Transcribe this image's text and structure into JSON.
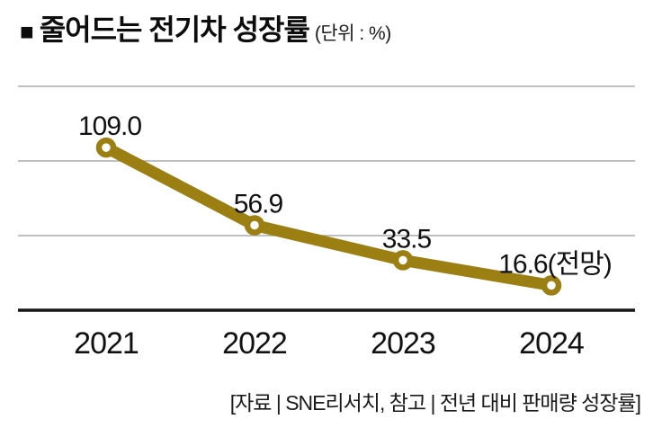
{
  "header": {
    "bullet": "■",
    "title": "줄어드는 전기차 성장률",
    "unit_label": "(단위 : %)"
  },
  "chart_data": {
    "type": "line",
    "title": "줄어드는 전기차 성장률",
    "unit": "%",
    "categories": [
      "2021",
      "2022",
      "2023",
      "2024"
    ],
    "values": [
      109.0,
      56.9,
      33.5,
      16.6
    ],
    "value_labels": [
      "109.0",
      "56.9",
      "33.5",
      "16.6(전망)"
    ],
    "series_note": "16.6 is a forecast (전망) for 2024",
    "ylim": [
      0,
      160
    ],
    "gridline_values": [
      50,
      100,
      150
    ],
    "grid": true,
    "legend": false,
    "xlabel": "",
    "ylabel": "전년 대비 판매량 성장률 (%)",
    "line_color": "#9c7f12",
    "marker_style": "ring-white-center",
    "gridline_color": "#ababab",
    "axis_color": "#141414",
    "text_color": "#111111"
  },
  "footer": {
    "source": "[자료 | SNE리서치, 참고 | 전년 대비 판매량 성장률]"
  }
}
